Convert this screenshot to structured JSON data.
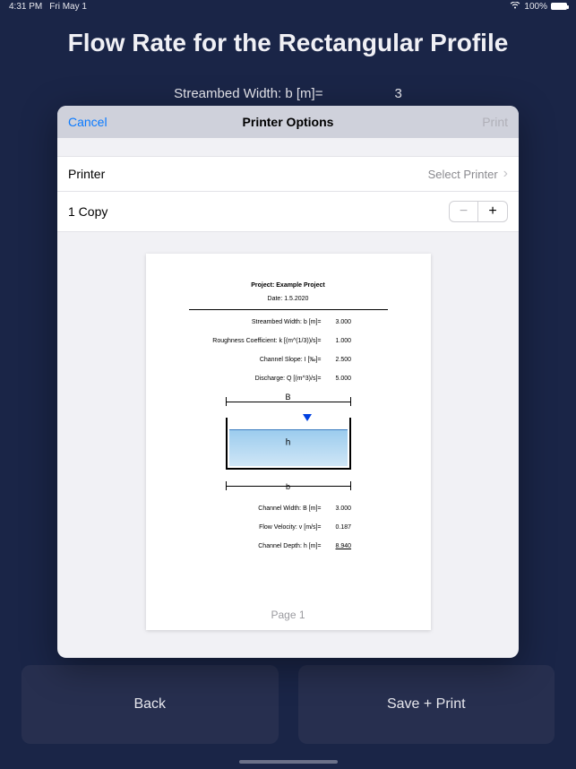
{
  "status": {
    "time": "4:31 PM",
    "date": "Fri May 1",
    "wifi": true,
    "battery_pct": "100%"
  },
  "page": {
    "title": "Flow Rate for the Rectangular Profile",
    "bg_field_label": "Streambed Width: b [m]=",
    "bg_field_value": "3"
  },
  "buttons": {
    "back": "Back",
    "save_print": "Save + Print"
  },
  "modal": {
    "cancel": "Cancel",
    "title": "Printer Options",
    "print": "Print",
    "printer_label": "Printer",
    "printer_value": "Select Printer",
    "copies_label": "1 Copy"
  },
  "doc": {
    "project_label": "Project: Example Project",
    "date_label": "Date: 1.5.2020",
    "rows_top": [
      {
        "lbl": "Streambed Width: b [m]=",
        "val": "3.000"
      },
      {
        "lbl": "Roughness Coefficient: k [(m^(1/3))/s]=",
        "val": "1.000"
      },
      {
        "lbl": "Channel Slope: I [‰]=",
        "val": "2.500"
      },
      {
        "lbl": "Discharge: Q [(m^3)/s]=",
        "val": "5.000"
      }
    ],
    "dim_top": "B",
    "dim_bot": "b",
    "h_label": "h",
    "rows_bot": [
      {
        "lbl": "Channel Width: B [m]=",
        "val": "3.000"
      },
      {
        "lbl": "Flow Velocity: v [m/s]=",
        "val": "0.187"
      },
      {
        "lbl": "Channel Depth: h [m]=",
        "val": "8.940",
        "underline": true
      }
    ],
    "page_footer": "Page 1",
    "colors": {
      "water_top": "#9cccee",
      "water_bottom": "#cfe6f6",
      "water_line": "#3a7bbf",
      "triangle": "#0040e0",
      "border": "#000000"
    }
  }
}
